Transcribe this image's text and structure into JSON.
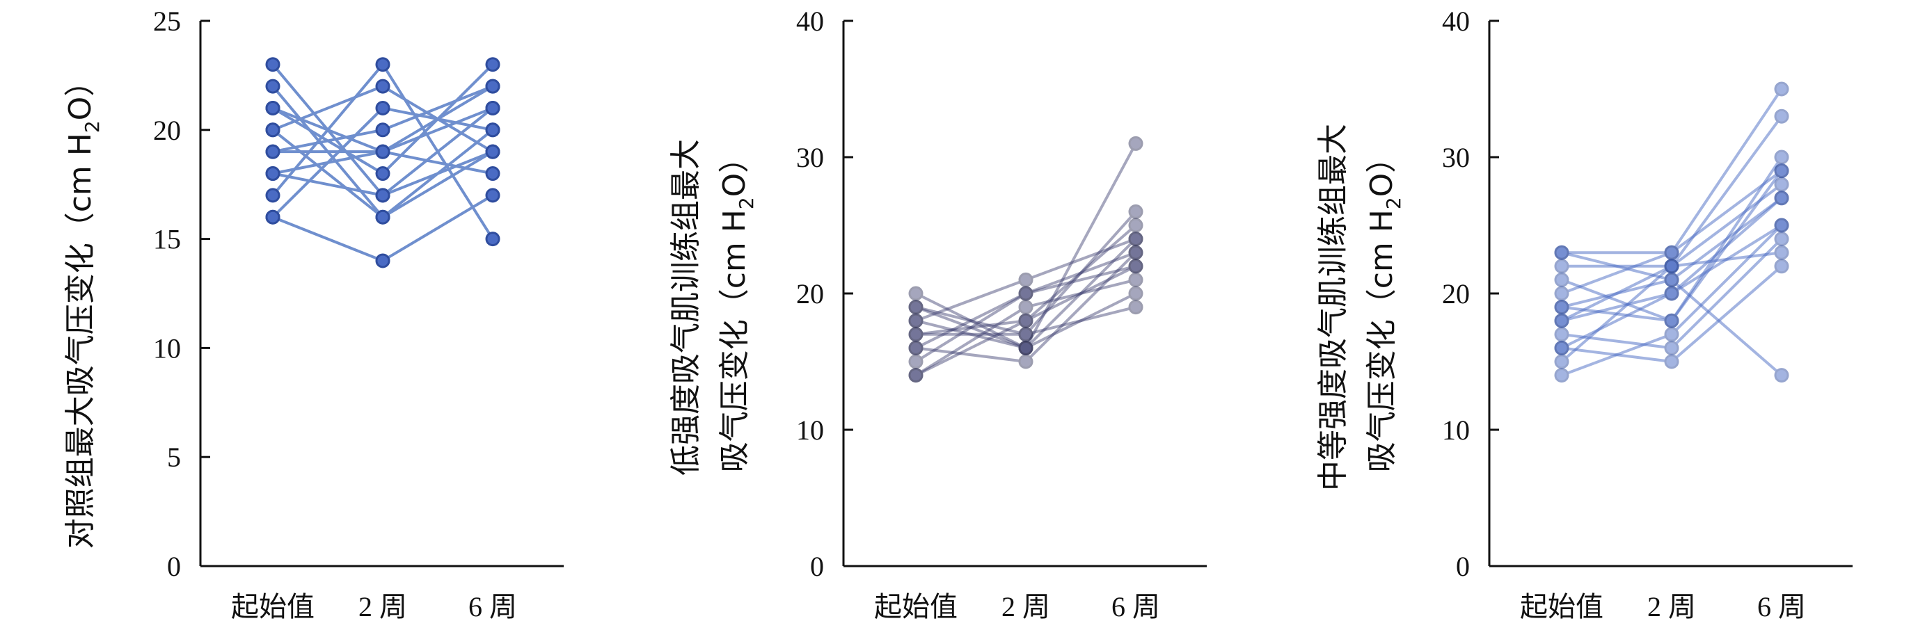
{
  "chart_data": [
    {
      "type": "line",
      "ylabel_lines": [
        {
          "pre": "对照组最大吸气压变化（cm H",
          "sub": "2",
          "post": "O）"
        }
      ],
      "categories": [
        "起始值",
        "2 周",
        "6 周"
      ],
      "ylim": [
        0,
        25
      ],
      "yticks": [
        0,
        5,
        10,
        15,
        20,
        25
      ],
      "grid": false,
      "line_color": "#6f8fce",
      "marker_fill": "#4a6bc4",
      "marker_stroke": "#2f4d9e",
      "opacity": 1,
      "series": [
        {
          "values": [
            23,
            17,
            19
          ]
        },
        {
          "values": [
            22,
            16,
            20
          ]
        },
        {
          "values": [
            21,
            18,
            23
          ]
        },
        {
          "values": [
            20,
            22,
            19
          ]
        },
        {
          "values": [
            19,
            20,
            22
          ]
        },
        {
          "values": [
            18,
            19,
            21
          ]
        },
        {
          "values": [
            17,
            23,
            15
          ]
        },
        {
          "values": [
            16,
            21,
            20
          ]
        },
        {
          "values": [
            16,
            14,
            17
          ]
        },
        {
          "values": [
            19,
            19,
            18
          ]
        },
        {
          "values": [
            18,
            17,
            21
          ]
        },
        {
          "values": [
            21,
            19,
            22
          ]
        },
        {
          "values": [
            20,
            16,
            19
          ]
        }
      ]
    },
    {
      "type": "line",
      "ylabel_lines": [
        {
          "pre": "低强度吸气肌训练组最大",
          "sub": "",
          "post": ""
        },
        {
          "pre": "吸气压变化（cm H",
          "sub": "2",
          "post": "O）"
        }
      ],
      "categories": [
        "起始值",
        "2 周",
        "6 周"
      ],
      "ylim": [
        0,
        40
      ],
      "yticks": [
        0,
        10,
        20,
        30,
        40
      ],
      "grid": false,
      "line_color": "#3a3c6e",
      "marker_fill": "#3a3c6e",
      "marker_stroke": "#262850",
      "opacity": 0.45,
      "series": [
        {
          "values": [
            20,
            16,
            31
          ]
        },
        {
          "values": [
            19,
            17,
            26
          ]
        },
        {
          "values": [
            18,
            21,
            24
          ]
        },
        {
          "values": [
            17,
            18,
            25
          ]
        },
        {
          "values": [
            16,
            15,
            23
          ]
        },
        {
          "values": [
            15,
            20,
            22
          ]
        },
        {
          "values": [
            14,
            19,
            21
          ]
        },
        {
          "values": [
            19,
            16,
            20
          ]
        },
        {
          "values": [
            17,
            17,
            19
          ]
        },
        {
          "values": [
            14,
            18,
            22
          ]
        },
        {
          "values": [
            18,
            16,
            24
          ]
        },
        {
          "values": [
            16,
            20,
            23
          ]
        }
      ]
    },
    {
      "type": "line",
      "ylabel_lines": [
        {
          "pre": "中等强度吸气肌训练组最大",
          "sub": "",
          "post": ""
        },
        {
          "pre": "吸气压变化（cm H",
          "sub": "2",
          "post": "O）"
        }
      ],
      "categories": [
        "起始值",
        "2 周",
        "6 周"
      ],
      "ylim": [
        0,
        40
      ],
      "yticks": [
        0,
        10,
        20,
        30,
        40
      ],
      "grid": false,
      "line_color": "#4a6bc4",
      "marker_fill": "#4a6bc4",
      "marker_stroke": "#2f4d9e",
      "opacity": 0.5,
      "series": [
        {
          "values": [
            23,
            23,
            35
          ]
        },
        {
          "values": [
            22,
            22,
            33
          ]
        },
        {
          "values": [
            21,
            18,
            30
          ]
        },
        {
          "values": [
            20,
            23,
            29
          ]
        },
        {
          "values": [
            19,
            21,
            27
          ]
        },
        {
          "values": [
            18,
            20,
            25
          ]
        },
        {
          "values": [
            17,
            16,
            24
          ]
        },
        {
          "values": [
            16,
            15,
            22
          ]
        },
        {
          "values": [
            15,
            22,
            28
          ]
        },
        {
          "values": [
            14,
            17,
            25
          ]
        },
        {
          "values": [
            23,
            21,
            14
          ]
        },
        {
          "values": [
            19,
            18,
            29
          ]
        },
        {
          "values": [
            18,
            22,
            23
          ]
        },
        {
          "values": [
            16,
            20,
            27
          ]
        }
      ]
    }
  ]
}
